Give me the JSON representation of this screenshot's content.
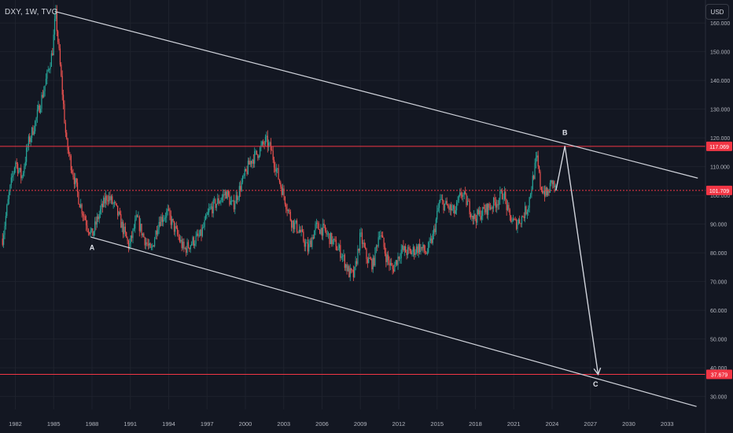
{
  "header": {
    "symbol": "DXY, 1W, TVC",
    "currency": "USD"
  },
  "colors": {
    "background": "#131722",
    "grid": "#1e222d",
    "axis_text": "#b2b5be",
    "up": "#26a69a",
    "down": "#ef5350",
    "trendline": "#d1d4dc",
    "hline": "#f23645",
    "price_tag": "#f23645"
  },
  "chart_data": {
    "type": "candlestick",
    "symbol": "DXY",
    "interval": "1W",
    "source": "TVC",
    "currency": "USD",
    "xlim": [
      1980.8,
      2036
    ],
    "ylim": [
      25.5,
      168
    ],
    "x_ticks": [
      "1982",
      "1985",
      "1988",
      "1991",
      "1994",
      "1997",
      "2000",
      "2003",
      "2006",
      "2009",
      "2012",
      "2015",
      "2018",
      "2021",
      "2024",
      "2027",
      "2030",
      "2033"
    ],
    "y_ticks": [
      "30.000",
      "40.000",
      "50.000",
      "60.000",
      "70.000",
      "80.000",
      "90.000",
      "100.000",
      "110.000",
      "120.000",
      "130.000",
      "140.000",
      "150.000",
      "160.000"
    ],
    "price_path": [
      [
        1981.0,
        85
      ],
      [
        1981.5,
        100
      ],
      [
        1982.0,
        112
      ],
      [
        1982.5,
        106
      ],
      [
        1983.0,
        118
      ],
      [
        1983.6,
        126
      ],
      [
        1984.3,
        138
      ],
      [
        1984.9,
        150
      ],
      [
        1985.15,
        163.5
      ],
      [
        1985.6,
        140
      ],
      [
        1986.0,
        118
      ],
      [
        1986.5,
        108
      ],
      [
        1987.0,
        98
      ],
      [
        1987.6,
        90
      ],
      [
        1988.0,
        86
      ],
      [
        1988.6,
        94
      ],
      [
        1989.2,
        100
      ],
      [
        1989.8,
        96
      ],
      [
        1990.3,
        90
      ],
      [
        1990.9,
        82
      ],
      [
        1991.5,
        92
      ],
      [
        1992.0,
        86
      ],
      [
        1992.6,
        80
      ],
      [
        1993.2,
        91
      ],
      [
        1993.9,
        94
      ],
      [
        1994.5,
        88
      ],
      [
        1995.2,
        81
      ],
      [
        1995.9,
        84
      ],
      [
        1996.5,
        86
      ],
      [
        1997.2,
        95
      ],
      [
        1997.9,
        98
      ],
      [
        1998.5,
        101
      ],
      [
        1999.0,
        96
      ],
      [
        1999.7,
        104
      ],
      [
        2000.4,
        112
      ],
      [
        2001.0,
        115
      ],
      [
        2001.6,
        119
      ],
      [
        2002.0,
        116
      ],
      [
        2002.6,
        106
      ],
      [
        2003.0,
        100
      ],
      [
        2003.6,
        91
      ],
      [
        2004.2,
        88
      ],
      [
        2004.9,
        81
      ],
      [
        2005.5,
        89
      ],
      [
        2006.1,
        88
      ],
      [
        2006.8,
        84
      ],
      [
        2007.5,
        80
      ],
      [
        2008.1,
        73
      ],
      [
        2008.5,
        72
      ],
      [
        2009.0,
        86
      ],
      [
        2009.5,
        78
      ],
      [
        2010.0,
        76
      ],
      [
        2010.5,
        88
      ],
      [
        2011.0,
        79
      ],
      [
        2011.5,
        74
      ],
      [
        2012.2,
        81
      ],
      [
        2012.9,
        80
      ],
      [
        2013.6,
        82
      ],
      [
        2014.2,
        80
      ],
      [
        2014.7,
        86
      ],
      [
        2015.2,
        98
      ],
      [
        2015.8,
        96
      ],
      [
        2016.4,
        94
      ],
      [
        2016.9,
        101
      ],
      [
        2017.4,
        97
      ],
      [
        2017.9,
        92
      ],
      [
        2018.5,
        94
      ],
      [
        2019.1,
        96
      ],
      [
        2019.7,
        98
      ],
      [
        2020.2,
        101
      ],
      [
        2020.6,
        93
      ],
      [
        2021.1,
        90
      ],
      [
        2021.6,
        92
      ],
      [
        2022.1,
        96
      ],
      [
        2022.5,
        106
      ],
      [
        2022.8,
        113
      ],
      [
        2023.1,
        103
      ],
      [
        2023.6,
        100
      ],
      [
        2024.0,
        105
      ],
      [
        2024.3,
        101.7
      ]
    ],
    "horizontal_lines": [
      {
        "price": 117.069,
        "label": "117.069",
        "style": "solid"
      },
      {
        "price": 101.709,
        "label": "101.709",
        "style": "dotted"
      },
      {
        "price": 37.679,
        "label": "37.679",
        "style": "solid"
      }
    ],
    "trendlines": [
      {
        "from": [
          1985.1,
          164
        ],
        "to": [
          2035.4,
          106
        ]
      },
      {
        "from": [
          1987.9,
          85.5
        ],
        "to": [
          2035.3,
          26.5
        ]
      }
    ],
    "projection": [
      [
        2024.3,
        101.7
      ],
      [
        2025.0,
        117.2
      ],
      [
        2027.6,
        37.679
      ]
    ],
    "point_labels": [
      {
        "text": "A",
        "x": 1988.0,
        "y": 81
      },
      {
        "text": "B",
        "x": 2025.0,
        "y": 121
      },
      {
        "text": "C",
        "x": 2027.4,
        "y": 33.5
      }
    ]
  }
}
